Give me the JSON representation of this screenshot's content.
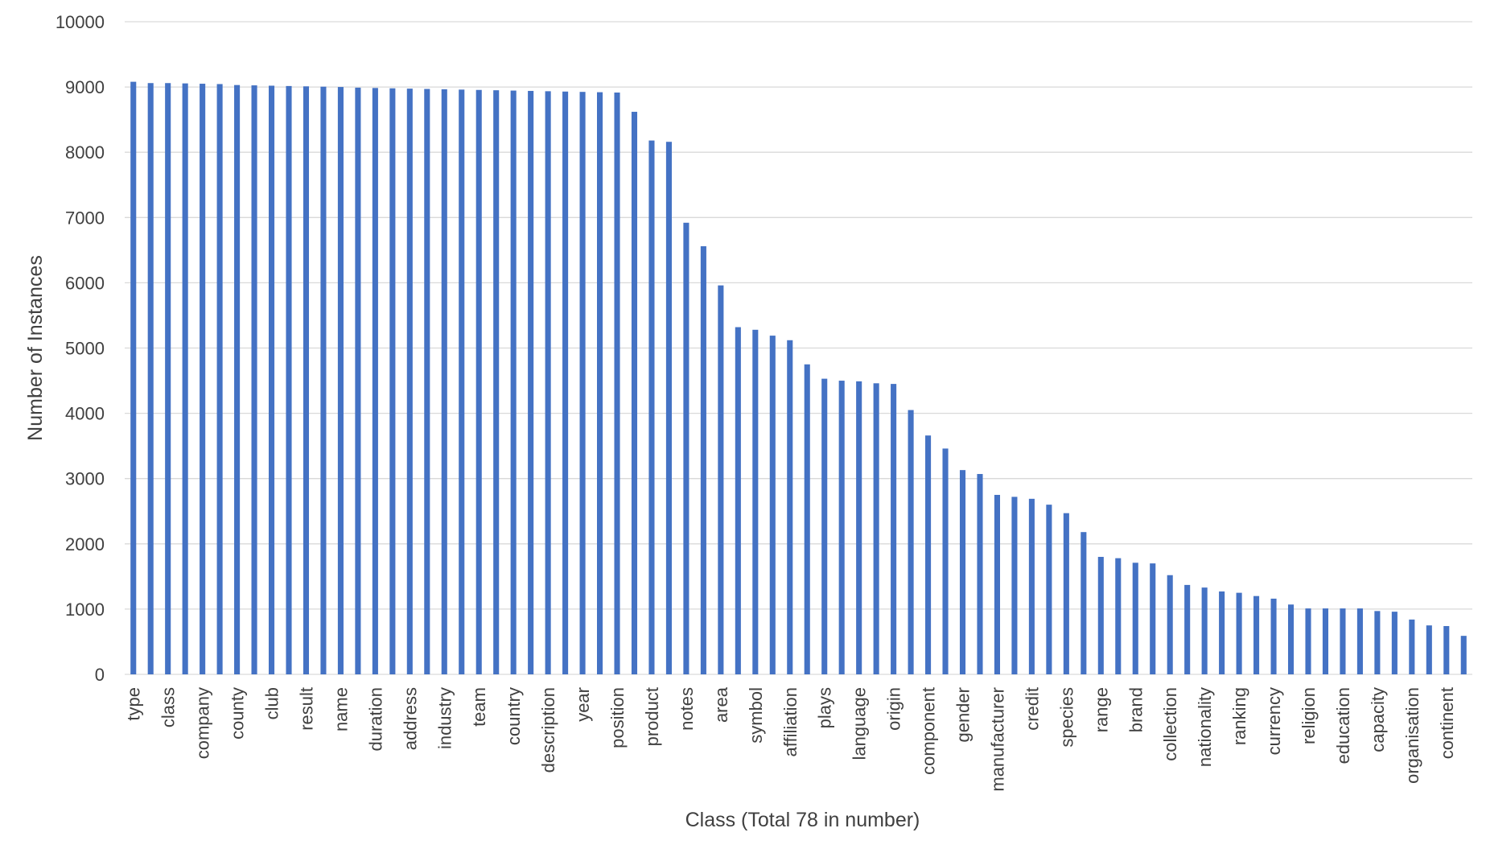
{
  "chart_data": {
    "type": "bar",
    "title": "",
    "xlabel": "Class (Total 78 in number)",
    "ylabel": "Number of Instances",
    "ylim": [
      0,
      10000
    ],
    "yticks": [
      0,
      1000,
      2000,
      3000,
      4000,
      5000,
      6000,
      7000,
      8000,
      9000,
      10000
    ],
    "grid": true,
    "legend": "none",
    "bar_color": "#4472c4",
    "categories": [
      "type",
      "",
      "class",
      "",
      "company",
      "",
      "county",
      "",
      "club",
      "",
      "result",
      "",
      "name",
      "",
      "duration",
      "",
      "address",
      "",
      "industry",
      "",
      "team",
      "",
      "country",
      "",
      "description",
      "",
      "year",
      "",
      "position",
      "",
      "product",
      "",
      "notes",
      "",
      "area",
      "",
      "symbol",
      "",
      "affiliation",
      "",
      "plays",
      "",
      "language",
      "",
      "origin",
      "",
      "component",
      "",
      "gender",
      "",
      "manufacturer",
      "",
      "credit",
      "",
      "species",
      "",
      "range",
      "",
      "brand",
      "",
      "collection",
      "",
      "nationality",
      "",
      "ranking",
      "",
      "currency",
      "",
      "religion",
      "",
      "education",
      "",
      "capacity",
      "",
      "organisation",
      "",
      "continent",
      ""
    ],
    "values": [
      9080,
      9060,
      9060,
      9055,
      9050,
      9045,
      9030,
      9025,
      9020,
      9015,
      9010,
      9005,
      9000,
      8990,
      8985,
      8980,
      8975,
      8970,
      8965,
      8960,
      8955,
      8950,
      8945,
      8940,
      8935,
      8930,
      8925,
      8920,
      8915,
      8620,
      8180,
      8160,
      6920,
      6560,
      5960,
      5320,
      5280,
      5190,
      5120,
      4750,
      4530,
      4500,
      4490,
      4460,
      4450,
      4050,
      3660,
      3460,
      3130,
      3070,
      2750,
      2720,
      2690,
      2600,
      2470,
      2180,
      1800,
      1780,
      1710,
      1700,
      1520,
      1370,
      1330,
      1270,
      1250,
      1200,
      1160,
      1070,
      1010,
      1010,
      1010,
      1010,
      970,
      960,
      840,
      750,
      740,
      590
    ]
  }
}
